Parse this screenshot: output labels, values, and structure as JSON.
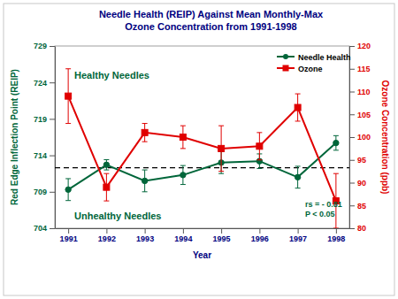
{
  "chart_data": {
    "type": "line",
    "title": [
      "Needle Health (REIP) Against Mean Monthly-Max",
      "Ozone Concentration from 1991-1998"
    ],
    "x_label": "Year",
    "y_label": "Red Edge Inflection Point (REIP)",
    "y2_label": "Ozone Concentration (ppb)",
    "categories": [
      "1991",
      "1992",
      "1993",
      "1994",
      "1995",
      "1996",
      "1997",
      "1998"
    ],
    "ylim": [
      704,
      729
    ],
    "yticks": [
      704,
      709,
      714,
      719,
      724,
      729
    ],
    "y2lim": [
      80,
      120
    ],
    "y2ticks": [
      80,
      85,
      90,
      95,
      100,
      105,
      110,
      115,
      120
    ],
    "grid": false,
    "legend": "upper right",
    "reference_line": 712.3,
    "annotations": [
      "Healthy Needles",
      "Unhealthy Needles",
      "rs = - 0.81",
      "P < 0.05"
    ],
    "series": [
      {
        "name": "Needle Health",
        "color": "#00663a",
        "marker": "circle",
        "line_style": "solid",
        "values": [
          709.3,
          712.7,
          710.5,
          711.3,
          713.0,
          713.2,
          711.0,
          715.7
        ],
        "errors": [
          1.5,
          0.7,
          1.5,
          1.3,
          1.5,
          1.0,
          1.5,
          1.0
        ]
      },
      {
        "name": "Ozone",
        "color": "#e00000",
        "marker": "square",
        "line_style": "solid",
        "axis": "y2",
        "values": [
          109,
          89,
          101,
          100,
          97.5,
          98,
          106.5,
          86
        ],
        "errors": [
          6,
          3,
          2,
          2.5,
          5,
          3,
          3,
          6
        ]
      }
    ]
  }
}
